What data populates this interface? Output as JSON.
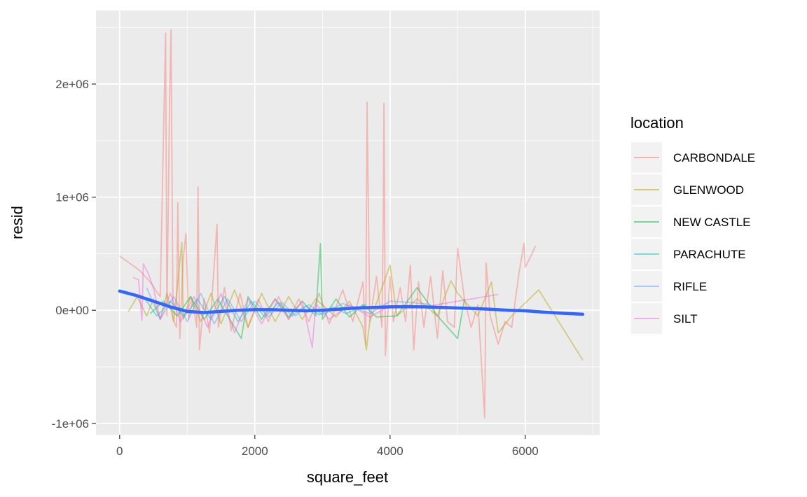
{
  "chart_data": {
    "type": "line",
    "title": "",
    "xlabel": "square_feet",
    "ylabel": "resid",
    "xlim": [
      -350,
      7100
    ],
    "ylim": [
      -1100000,
      2650000
    ],
    "x_ticks": [
      0,
      2000,
      4000,
      6000
    ],
    "x_tick_labels": [
      "0",
      "2000",
      "4000",
      "6000"
    ],
    "y_ticks": [
      -1000000,
      0,
      1000000,
      2000000
    ],
    "y_tick_labels": [
      "-1e+06",
      "0e+00",
      "1e+06",
      "2e+06"
    ],
    "grid": true,
    "legend_title": "location",
    "legend_position": "right",
    "series": [
      {
        "name": "CARBONDALE",
        "color": "#F8766D",
        "points": [
          [
            0,
            480000
          ],
          [
            300,
            350000
          ],
          [
            450,
            250000
          ],
          [
            600,
            120000
          ],
          [
            680,
            2450000
          ],
          [
            700,
            -50000
          ],
          [
            740,
            1900000
          ],
          [
            760,
            2480000
          ],
          [
            790,
            -80000
          ],
          [
            840,
            -150000
          ],
          [
            860,
            950000
          ],
          [
            890,
            -250000
          ],
          [
            940,
            450000
          ],
          [
            980,
            680000
          ],
          [
            1020,
            -80000
          ],
          [
            1080,
            80000
          ],
          [
            1140,
            -150000
          ],
          [
            1160,
            1090000
          ],
          [
            1180,
            -350000
          ],
          [
            1250,
            100000
          ],
          [
            1330,
            -200000
          ],
          [
            1440,
            760000
          ],
          [
            1460,
            -150000
          ],
          [
            1550,
            200000
          ],
          [
            1650,
            -180000
          ],
          [
            1780,
            150000
          ],
          [
            1900,
            -150000
          ],
          [
            2050,
            100000
          ],
          [
            2200,
            -100000
          ],
          [
            2350,
            120000
          ],
          [
            2500,
            -80000
          ],
          [
            2650,
            100000
          ],
          [
            2800,
            -100000
          ],
          [
            2950,
            150000
          ],
          [
            3100,
            -120000
          ],
          [
            3300,
            180000
          ],
          [
            3450,
            -100000
          ],
          [
            3600,
            250000
          ],
          [
            3640,
            -300000
          ],
          [
            3660,
            1840000
          ],
          [
            3700,
            -100000
          ],
          [
            3800,
            300000
          ],
          [
            3880,
            -150000
          ],
          [
            3900,
            880000
          ],
          [
            3910,
            1830000
          ],
          [
            3930,
            -400000
          ],
          [
            4000,
            300000
          ],
          [
            4050,
            -100000
          ],
          [
            4150,
            200000
          ],
          [
            4230,
            -100000
          ],
          [
            4300,
            400000
          ],
          [
            4350,
            -350000
          ],
          [
            4420,
            250000
          ],
          [
            4500,
            -150000
          ],
          [
            4600,
            300000
          ],
          [
            4700,
            -250000
          ],
          [
            4780,
            350000
          ],
          [
            4850,
            -100000
          ],
          [
            4950,
            -150000
          ],
          [
            5000,
            550000
          ],
          [
            5100,
            100000
          ],
          [
            5200,
            -150000
          ],
          [
            5300,
            50000
          ],
          [
            5400,
            -950000
          ],
          [
            5420,
            420000
          ],
          [
            5480,
            -50000
          ],
          [
            5600,
            -300000
          ],
          [
            5700,
            -100000
          ],
          [
            5800,
            -150000
          ],
          [
            5900,
            300000
          ],
          [
            5980,
            590000
          ],
          [
            6000,
            380000
          ],
          [
            6100,
            500000
          ],
          [
            6150,
            570000
          ]
        ]
      },
      {
        "name": "GLENWOOD",
        "color": "#B79F00",
        "points": [
          [
            130,
            -10000
          ],
          [
            260,
            120000
          ],
          [
            400,
            -50000
          ],
          [
            500,
            100000
          ],
          [
            600,
            -80000
          ],
          [
            700,
            150000
          ],
          [
            800,
            -100000
          ],
          [
            920,
            600000
          ],
          [
            940,
            -80000
          ],
          [
            1050,
            120000
          ],
          [
            1200,
            -100000
          ],
          [
            1350,
            150000
          ],
          [
            1500,
            -120000
          ],
          [
            1700,
            180000
          ],
          [
            1900,
            -150000
          ],
          [
            2100,
            150000
          ],
          [
            2300,
            -100000
          ],
          [
            2500,
            120000
          ],
          [
            2700,
            -80000
          ],
          [
            2900,
            100000
          ],
          [
            3200,
            -60000
          ],
          [
            3400,
            80000
          ],
          [
            3600,
            -150000
          ],
          [
            3650,
            -350000
          ],
          [
            3700,
            -100000
          ],
          [
            4000,
            400000
          ],
          [
            4100,
            -50000
          ],
          [
            4400,
            100000
          ],
          [
            4700,
            -50000
          ],
          [
            4900,
            260000
          ],
          [
            5000,
            150000
          ],
          [
            5300,
            -50000
          ],
          [
            5500,
            250000
          ],
          [
            5600,
            -200000
          ],
          [
            5800,
            -50000
          ],
          [
            6200,
            180000
          ],
          [
            6850,
            -440000
          ]
        ]
      },
      {
        "name": "NEW CASTLE",
        "color": "#00BA38",
        "points": [
          [
            450,
            -30000
          ],
          [
            650,
            80000
          ],
          [
            850,
            -50000
          ],
          [
            1050,
            120000
          ],
          [
            1250,
            -80000
          ],
          [
            1450,
            100000
          ],
          [
            1650,
            -100000
          ],
          [
            1800,
            -250000
          ],
          [
            1900,
            120000
          ],
          [
            2100,
            -80000
          ],
          [
            2300,
            100000
          ],
          [
            2500,
            -60000
          ],
          [
            2700,
            80000
          ],
          [
            2900,
            -50000
          ],
          [
            2970,
            590000
          ],
          [
            3000,
            -80000
          ],
          [
            3200,
            100000
          ],
          [
            3400,
            -60000
          ],
          [
            3600,
            50000
          ],
          [
            3800,
            -60000
          ],
          [
            4100,
            -50000
          ],
          [
            4400,
            200000
          ],
          [
            4700,
            -50000
          ],
          [
            5000,
            -250000
          ],
          [
            5100,
            100000
          ]
        ]
      },
      {
        "name": "PARACHUTE",
        "color": "#00BFC4",
        "points": [
          [
            350,
            120000
          ],
          [
            550,
            -50000
          ],
          [
            750,
            80000
          ],
          [
            950,
            -60000
          ],
          [
            1150,
            100000
          ],
          [
            1350,
            -80000
          ],
          [
            1550,
            120000
          ],
          [
            1750,
            -100000
          ],
          [
            1950,
            80000
          ],
          [
            2150,
            -60000
          ],
          [
            2350,
            70000
          ],
          [
            2550,
            -50000
          ],
          [
            2750,
            40000
          ],
          [
            2950,
            -40000
          ],
          [
            3150,
            30000
          ],
          [
            3350,
            -30000
          ],
          [
            3650,
            50000
          ]
        ]
      },
      {
        "name": "RIFLE",
        "color": "#619CFF",
        "points": [
          [
            400,
            200000
          ],
          [
            600,
            -80000
          ],
          [
            800,
            120000
          ],
          [
            1000,
            -100000
          ],
          [
            1200,
            150000
          ],
          [
            1400,
            -120000
          ],
          [
            1600,
            100000
          ],
          [
            1800,
            -100000
          ],
          [
            2000,
            80000
          ],
          [
            2200,
            -60000
          ],
          [
            2400,
            70000
          ],
          [
            2600,
            -50000
          ],
          [
            2800,
            50000
          ],
          [
            3000,
            -40000
          ],
          [
            3300,
            60000
          ],
          [
            3700,
            -30000
          ],
          [
            4000,
            80000
          ],
          [
            4300,
            70000
          ],
          [
            4600,
            50000
          ]
        ]
      },
      {
        "name": "SILT",
        "color": "#F564E3",
        "points": [
          [
            200,
            290000
          ],
          [
            280,
            270000
          ],
          [
            330,
            -90000
          ],
          [
            350,
            410000
          ],
          [
            420,
            330000
          ],
          [
            500,
            200000
          ],
          [
            600,
            -80000
          ],
          [
            750,
            150000
          ],
          [
            900,
            -100000
          ],
          [
            1100,
            120000
          ],
          [
            1300,
            -150000
          ],
          [
            1500,
            150000
          ],
          [
            1700,
            -200000
          ],
          [
            1900,
            100000
          ],
          [
            2100,
            -120000
          ],
          [
            2300,
            100000
          ],
          [
            2500,
            -80000
          ],
          [
            2700,
            80000
          ],
          [
            2850,
            -330000
          ],
          [
            2900,
            60000
          ],
          [
            3100,
            -80000
          ],
          [
            3400,
            50000
          ],
          [
            3700,
            -60000
          ],
          [
            4000,
            40000
          ],
          [
            4500,
            30000
          ],
          [
            5000,
            80000
          ],
          [
            5600,
            140000
          ]
        ]
      }
    ],
    "smooth": {
      "name": "smooth",
      "color": "#3366FF",
      "points": [
        [
          0,
          170000
        ],
        [
          250,
          130000
        ],
        [
          500,
          80000
        ],
        [
          750,
          30000
        ],
        [
          1000,
          -10000
        ],
        [
          1250,
          -20000
        ],
        [
          1500,
          -10000
        ],
        [
          1750,
          0
        ],
        [
          2000,
          5000
        ],
        [
          2250,
          5000
        ],
        [
          2500,
          0
        ],
        [
          2750,
          -5000
        ],
        [
          3000,
          0
        ],
        [
          3250,
          10000
        ],
        [
          3500,
          20000
        ],
        [
          3750,
          25000
        ],
        [
          4000,
          30000
        ],
        [
          4250,
          32000
        ],
        [
          4500,
          30000
        ],
        [
          4750,
          25000
        ],
        [
          5000,
          20000
        ],
        [
          5250,
          15000
        ],
        [
          5500,
          8000
        ],
        [
          5750,
          0
        ],
        [
          6000,
          -5000
        ],
        [
          6250,
          -15000
        ],
        [
          6500,
          -25000
        ],
        [
          6850,
          -35000
        ]
      ]
    }
  }
}
